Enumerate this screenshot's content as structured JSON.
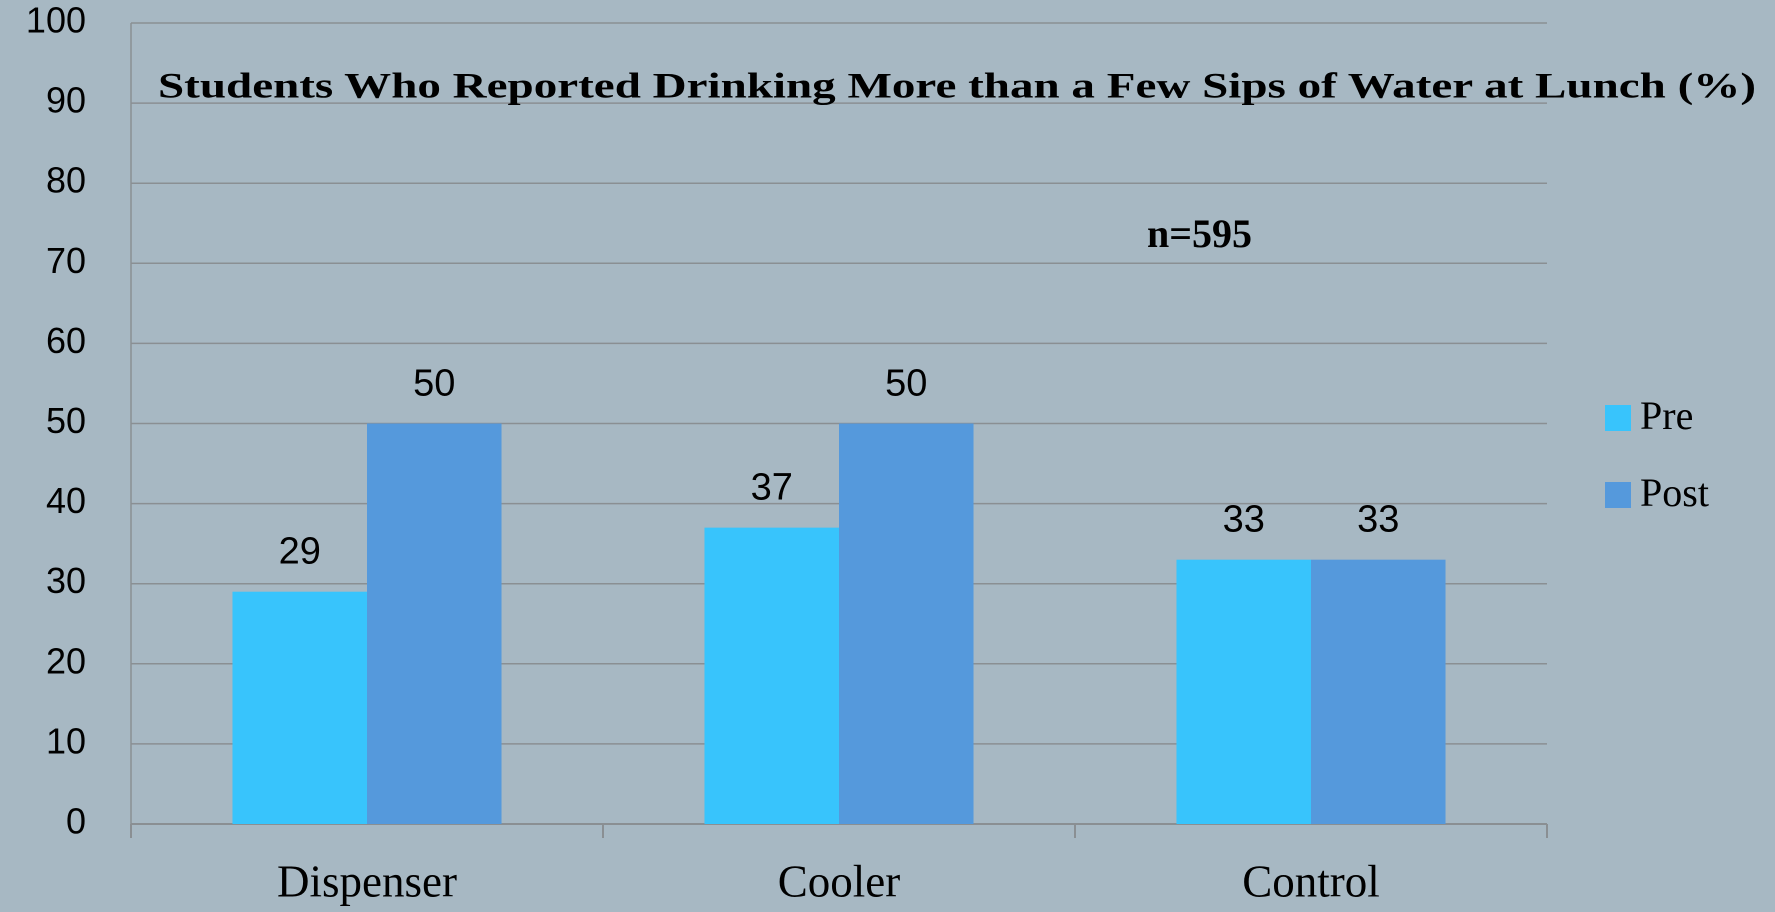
{
  "chart_data": {
    "type": "bar",
    "title": "Students Who Reported Drinking More than a Few Sips of Water at Lunch (%)",
    "annotation": "n=595",
    "categories": [
      "Dispenser",
      "Cooler",
      "Control"
    ],
    "series": [
      {
        "name": "Pre",
        "color": "#38c4fc",
        "values": [
          29,
          37,
          33
        ]
      },
      {
        "name": "Post",
        "color": "#5599dc",
        "values": [
          50,
          50,
          33
        ]
      }
    ],
    "ylim": [
      0,
      100
    ],
    "yticks": [
      0,
      10,
      20,
      30,
      40,
      50,
      60,
      70,
      80,
      90,
      100
    ],
    "grid": true,
    "legend": "right"
  }
}
